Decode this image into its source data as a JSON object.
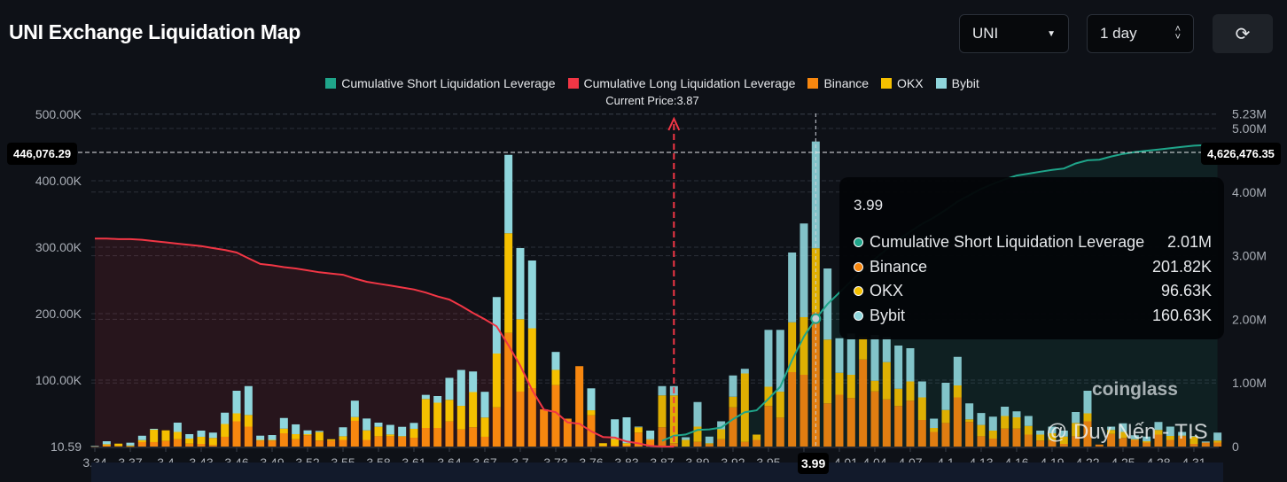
{
  "header": {
    "title": "UNI Exchange Liquidation Map",
    "symbol_select": "UNI",
    "period_select": "1 day",
    "refresh_icon": "refresh-icon"
  },
  "watermarks": {
    "logo": "coinglass",
    "credit": "@ Duy Nến - TIS"
  },
  "chart_data": {
    "type": "bar",
    "stacked": true,
    "legend_position": "top-center",
    "grid": true,
    "current_price_label": "Current Price:3.87",
    "legend": [
      {
        "name": "Cumulative Short Liquidation Leverage",
        "color": "#1fa58a"
      },
      {
        "name": "Cumulative Long Liquidation Leverage",
        "color": "#f23645"
      },
      {
        "name": "Binance",
        "color": "#f7870f"
      },
      {
        "name": "OKX",
        "color": "#f5c000"
      },
      {
        "name": "Bybit",
        "color": "#8fd6dc"
      }
    ],
    "x_tick_labels": [
      "3.34",
      "3.37",
      "3.4",
      "3.43",
      "3.46",
      "3.49",
      "3.52",
      "3.55",
      "3.58",
      "3.61",
      "3.64",
      "3.67",
      "3.7",
      "3.73",
      "3.76",
      "3.83",
      "3.87",
      "3.89",
      "3.92",
      "3.95",
      "",
      "4.01",
      "4.04",
      "4.07",
      "4.1",
      "4.13",
      "4.16",
      "4.19",
      "4.22",
      "4.25",
      "4.28",
      "4.31"
    ],
    "left_axis": {
      "ticks": [
        "10.59",
        "100.00K",
        "200.00K",
        "300.00K",
        "400.00K",
        "500.00K"
      ],
      "tick_values": [
        0.01059,
        100,
        200,
        300,
        400,
        500
      ],
      "unit": "K",
      "range": [
        0,
        500
      ]
    },
    "right_axis": {
      "ticks": [
        "0",
        "1.00M",
        "2.00M",
        "3.00M",
        "4.00M",
        "5.00M",
        "5.23M"
      ],
      "tick_values": [
        0,
        1,
        2,
        3,
        4,
        5,
        5.23
      ],
      "unit": "M",
      "range": [
        0,
        5.23
      ]
    },
    "series": [
      {
        "name": "Binance",
        "axis": "left",
        "values": [
          0.5,
          2,
          1,
          0.5,
          6.7,
          6.7,
          8.4,
          11,
          4.4,
          4,
          2.2,
          14.7,
          38,
          30,
          9,
          9,
          20,
          11,
          17,
          9,
          9,
          10,
          38.7,
          10,
          15.5,
          15.5,
          14.7,
          13.3,
          28,
          28,
          37.8,
          25.8,
          29,
          14.7,
          59,
          171,
          82.7,
          88,
          56,
          92.4,
          42,
          121,
          47,
          1,
          1.3,
          2,
          21,
          10,
          29,
          5,
          0,
          7,
          3.5,
          11,
          59,
          7,
          10,
          61,
          43.6,
          112,
          108,
          201.82,
          65,
          78,
          73,
          131,
          83,
          71,
          61,
          69,
          40,
          22,
          35.5,
          74,
          37,
          15.5,
          12,
          27,
          27,
          18,
          9,
          9,
          4,
          15.5,
          38,
          3,
          19,
          13,
          10,
          6,
          18,
          10,
          15.5,
          4,
          6,
          6
        ]
      },
      {
        "name": "OKX",
        "axis": "left",
        "values": [
          0,
          1.5,
          3.4,
          1,
          3,
          18.6,
          16,
          11,
          7.6,
          10.7,
          10.8,
          19.3,
          12,
          17.5,
          1,
          1,
          7,
          7.7,
          1.7,
          12.8,
          2,
          5.5,
          5.7,
          14.4,
          14.3,
          2.7,
          1,
          13.4,
          43.6,
          38,
          32.6,
          35.5,
          53,
          29,
          81,
          150,
          109,
          90,
          0,
          23,
          0,
          0,
          7.6,
          4,
          10,
          3,
          8,
          1,
          48,
          72,
          10,
          23,
          1.5,
          15,
          16,
          103,
          8,
          29,
          39,
          75,
          86.7,
          96.63,
          96,
          33,
          35,
          34,
          16,
          56,
          26,
          29,
          34,
          6,
          19.5,
          18,
          4,
          17,
          12,
          19,
          17,
          13,
          9,
          11,
          11,
          20,
          12,
          0,
          6,
          9,
          1,
          2,
          7,
          6,
          1,
          11,
          0,
          3
        ]
      },
      {
        "name": "Bybit",
        "axis": "left",
        "values": [
          0.5,
          4.5,
          0,
          4.3,
          6.6,
          1.4,
          0,
          14,
          6.7,
          9.3,
          8,
          17,
          34,
          43.5,
          6.4,
          7.3,
          16,
          14.7,
          5.7,
          1.7,
          0,
          13.5,
          24.7,
          17.8,
          6.2,
          14.4,
          14,
          8.9,
          6.2,
          10,
          33,
          54,
          31,
          38.7,
          85,
          118,
          107,
          102,
          0,
          27,
          0,
          0,
          33,
          0,
          29.7,
          39,
          1,
          13,
          14,
          14,
          4,
          37,
          10,
          12,
          32,
          7,
          0,
          85.6,
          93,
          105,
          141,
          160.63,
          107,
          52,
          62,
          0,
          69,
          38,
          65,
          50,
          24,
          14,
          41,
          43,
          24,
          18,
          21,
          14,
          9,
          15,
          6,
          10,
          9,
          16.5,
          34,
          0,
          5,
          13,
          6,
          7,
          12,
          14,
          5.5,
          1,
          1.6,
          12
        ]
      },
      {
        "name": "Cumulative Long Liquidation Leverage",
        "axis": "right",
        "type": "area",
        "values": [
          3.27,
          3.27,
          3.26,
          3.26,
          3.25,
          3.23,
          3.21,
          3.19,
          3.17,
          3.15,
          3.12,
          3.09,
          3.05,
          2.96,
          2.87,
          2.85,
          2.82,
          2.8,
          2.77,
          2.74,
          2.72,
          2.7,
          2.64,
          2.59,
          2.56,
          2.53,
          2.5,
          2.47,
          2.42,
          2.36,
          2.31,
          2.21,
          2.1,
          2.0,
          1.89,
          1.59,
          1.27,
          0.89,
          0.58,
          0.54,
          0.38,
          0.36,
          0.24,
          0.15,
          0.14,
          0.08,
          0.05,
          0.01,
          0,
          0,
          null,
          null,
          null,
          null,
          null,
          null,
          null,
          null,
          null,
          null,
          null,
          null,
          null,
          null,
          null,
          null,
          null,
          null,
          null,
          null,
          null,
          null,
          null,
          null,
          null,
          null,
          null,
          null,
          null,
          null,
          null,
          null,
          null,
          null,
          null,
          null,
          null,
          null,
          null,
          null,
          null,
          null,
          null,
          null,
          null,
          null
        ]
      },
      {
        "name": "Cumulative Short Liquidation Leverage",
        "axis": "right",
        "type": "area",
        "values": [
          null,
          null,
          null,
          null,
          null,
          null,
          null,
          null,
          null,
          null,
          null,
          null,
          null,
          null,
          null,
          null,
          null,
          null,
          null,
          null,
          null,
          null,
          null,
          null,
          null,
          null,
          null,
          null,
          null,
          null,
          null,
          null,
          null,
          null,
          null,
          null,
          null,
          null,
          null,
          null,
          null,
          null,
          null,
          null,
          null,
          null,
          null,
          null,
          0.09,
          0.17,
          0.19,
          0.26,
          0.27,
          0.3,
          0.43,
          0.54,
          0.57,
          0.75,
          0.94,
          1.36,
          1.73,
          2.01,
          2.24,
          2.42,
          2.6,
          2.78,
          2.95,
          3.1,
          3.25,
          3.38,
          3.5,
          3.6,
          3.72,
          3.85,
          3.95,
          4.05,
          4.13,
          4.2,
          4.26,
          4.29,
          4.32,
          4.35,
          4.37,
          4.45,
          4.5,
          4.51,
          4.56,
          4.6,
          4.63,
          4.65,
          4.67,
          4.69,
          4.71,
          4.73,
          4.74,
          4.75
        ]
      }
    ],
    "current_price_index": 49,
    "hover": {
      "index": 61,
      "x_label": "3.99",
      "left_crosshair_value": "446,076.29",
      "right_crosshair_value": "4,626,476.35",
      "tooltip": {
        "title": "3.99",
        "rows": [
          {
            "name": "Cumulative Short Liquidation Leverage",
            "value": "2.01M",
            "color": "#1fa58a"
          },
          {
            "name": "Binance",
            "value": "201.82K",
            "color": "#f7870f"
          },
          {
            "name": "OKX",
            "value": "96.63K",
            "color": "#f5c000"
          },
          {
            "name": "Bybit",
            "value": "160.63K",
            "color": "#8fd6dc"
          }
        ]
      }
    }
  }
}
